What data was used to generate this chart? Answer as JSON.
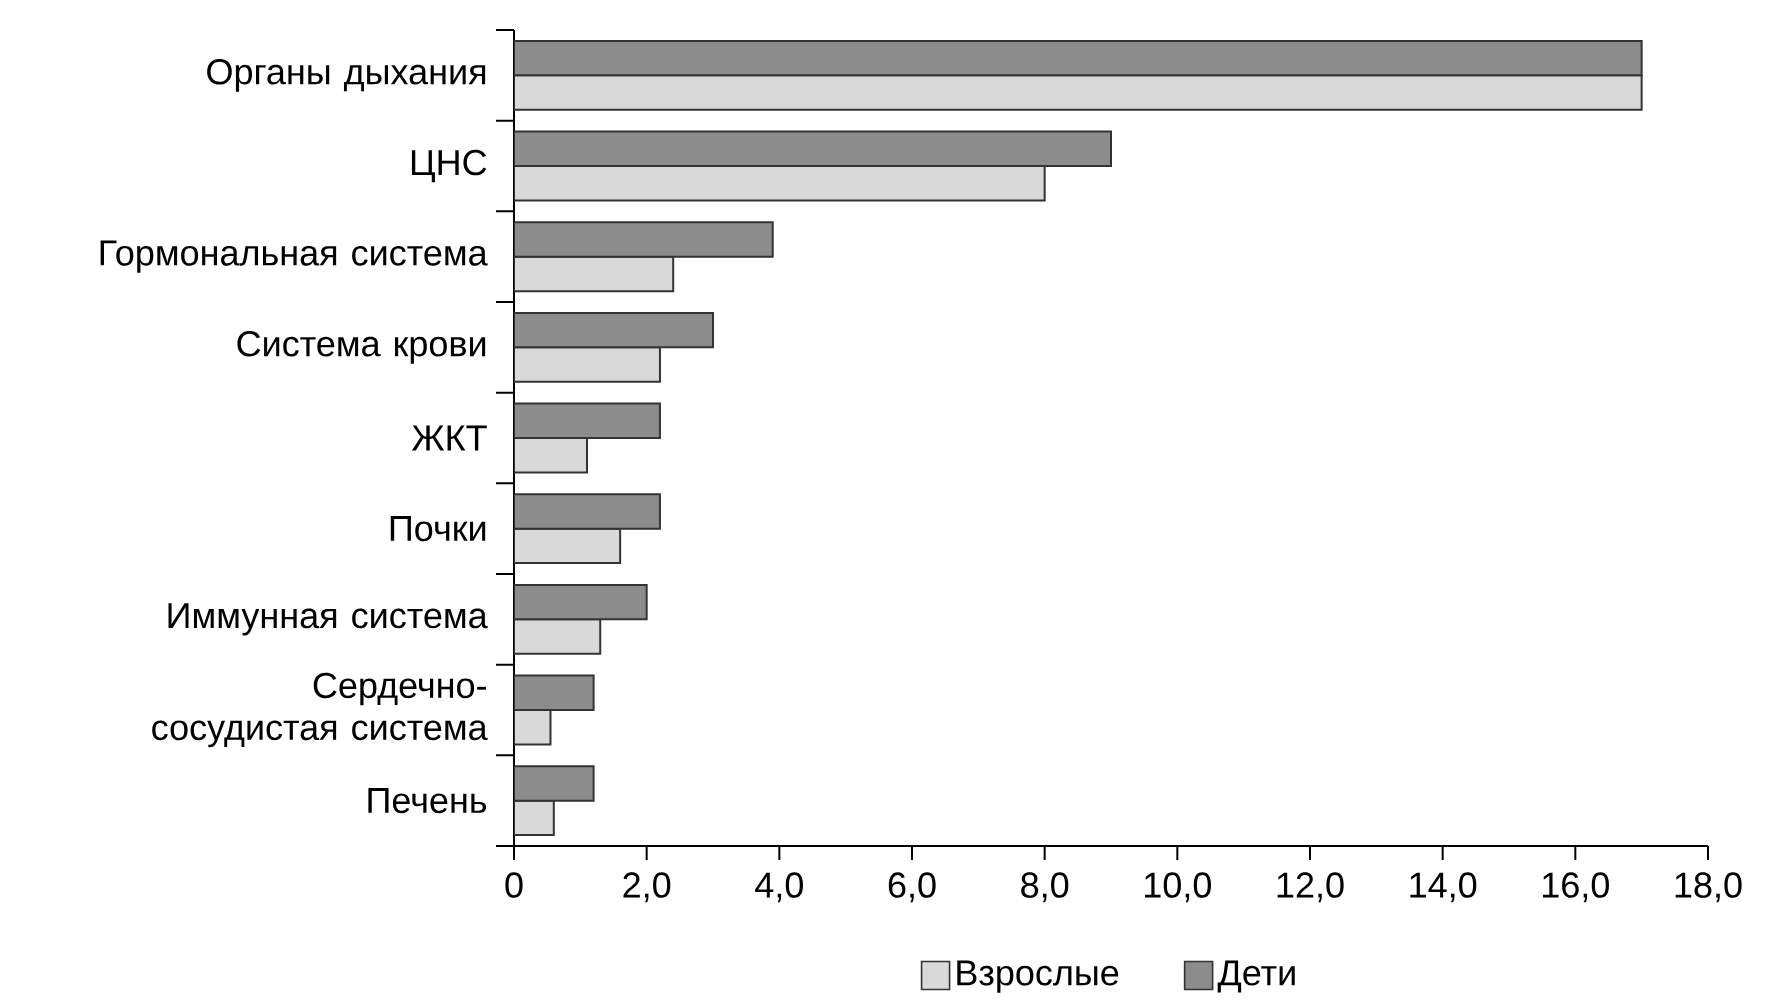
{
  "chart_data": {
    "type": "bar",
    "orientation": "horizontal",
    "categories": [
      "Органы дыхания",
      "ЦНС",
      "Гормональная система",
      "Система крови",
      "ЖКТ",
      "Почки",
      "Иммунная система",
      "Сердечно-сосудистая система",
      "Печень"
    ],
    "series": [
      {
        "name": "Взрослые",
        "color": "#d9d9d9",
        "values": [
          17.0,
          8.0,
          2.4,
          2.2,
          1.1,
          1.6,
          1.3,
          0.55,
          0.6
        ]
      },
      {
        "name": "Дети",
        "color": "#8c8c8c",
        "values": [
          17.0,
          9.0,
          3.9,
          3.0,
          2.2,
          2.2,
          2.0,
          1.2,
          1.2
        ]
      }
    ],
    "xlim": [
      0,
      18
    ],
    "xticks": [
      0,
      {
        "value": 2,
        "label": "2,0"
      },
      {
        "value": 4,
        "label": "4,0"
      },
      {
        "value": 6,
        "label": "6,0"
      },
      {
        "value": 8,
        "label": "8,0"
      },
      {
        "value": 10,
        "label": "10,0"
      },
      {
        "value": 12,
        "label": "12,0"
      },
      {
        "value": 14,
        "label": "14,0"
      },
      {
        "value": 16,
        "label": "16,0"
      },
      {
        "value": 18,
        "label": "18,0"
      }
    ],
    "grid": false,
    "legend": "bottom"
  }
}
